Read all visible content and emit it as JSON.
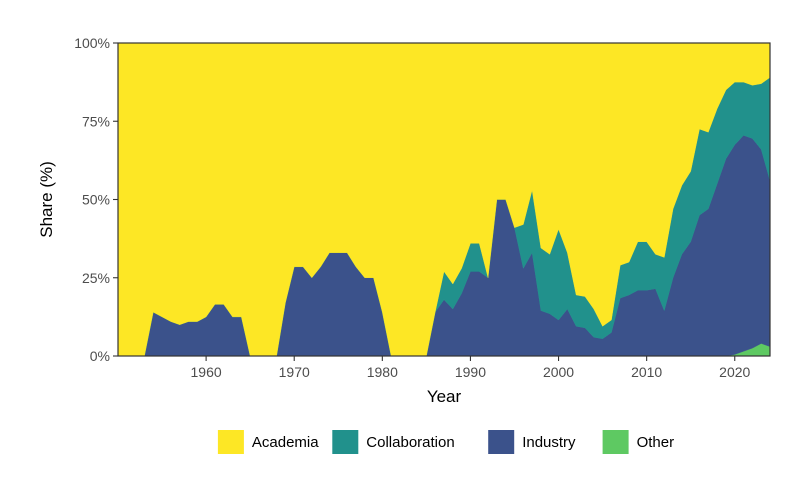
{
  "chart_data": {
    "type": "area",
    "stacked": true,
    "normalized": true,
    "xlabel": "Year",
    "ylabel": "Share (%)",
    "xlim": [
      1950,
      2024
    ],
    "ylim": [
      0,
      100
    ],
    "x_ticks": [
      1960,
      1970,
      1980,
      1990,
      2000,
      2010,
      2020
    ],
    "y_ticks": [
      {
        "value": 0,
        "label": "0%"
      },
      {
        "value": 25,
        "label": "25%"
      },
      {
        "value": 50,
        "label": "50%"
      },
      {
        "value": 75,
        "label": "75%"
      },
      {
        "value": 100,
        "label": "100%"
      }
    ],
    "grid": false,
    "legend_position": "bottom",
    "x": [
      1950,
      1951,
      1952,
      1953,
      1954,
      1955,
      1956,
      1957,
      1958,
      1959,
      1960,
      1961,
      1962,
      1963,
      1964,
      1965,
      1966,
      1967,
      1968,
      1969,
      1970,
      1971,
      1972,
      1973,
      1974,
      1975,
      1976,
      1977,
      1978,
      1979,
      1980,
      1981,
      1982,
      1983,
      1984,
      1985,
      1986,
      1987,
      1988,
      1989,
      1990,
      1991,
      1992,
      1993,
      1994,
      1995,
      1996,
      1997,
      1998,
      1999,
      2000,
      2001,
      2002,
      2003,
      2004,
      2005,
      2006,
      2007,
      2008,
      2009,
      2010,
      2011,
      2012,
      2013,
      2014,
      2015,
      2016,
      2017,
      2018,
      2019,
      2020,
      2021,
      2022,
      2023,
      2024
    ],
    "series": [
      {
        "name": "Other",
        "color": "#5ec962",
        "values": [
          0,
          0,
          0,
          0,
          0,
          0,
          0,
          0,
          0,
          0,
          0,
          0,
          0,
          0,
          0,
          0,
          0,
          0,
          0,
          0,
          0,
          0,
          0,
          0,
          0,
          0,
          0,
          0,
          0,
          0,
          0,
          0,
          0,
          0,
          0,
          0,
          0,
          0,
          0,
          0,
          0,
          0,
          0,
          0,
          0,
          0,
          0,
          0,
          0,
          0,
          0,
          0,
          0,
          0,
          0,
          0,
          0,
          0,
          0,
          0,
          0,
          0,
          0,
          0,
          0,
          0,
          0,
          0,
          0,
          0,
          0.5,
          1.5,
          2.5,
          4,
          3
        ]
      },
      {
        "name": "Industry",
        "color": "#3b528b",
        "values": [
          0,
          0,
          0,
          0,
          14,
          12.5,
          11,
          10,
          11,
          11,
          12.5,
          16.5,
          16.5,
          12.5,
          12.5,
          0,
          0,
          0,
          0,
          17,
          28.5,
          28.5,
          25,
          28.5,
          33,
          33,
          33,
          28.5,
          25,
          25,
          14,
          0,
          0,
          0,
          0,
          0,
          14,
          18,
          15,
          20,
          27,
          27,
          25,
          50,
          50,
          41,
          28,
          33,
          14.5,
          13.5,
          11.5,
          15,
          9.5,
          9,
          6,
          5.5,
          7.5,
          18.5,
          19.5,
          21,
          21,
          21.5,
          14.5,
          25,
          32.5,
          36.5,
          45,
          47,
          55,
          63,
          67,
          69,
          67,
          62,
          53
        ]
      },
      {
        "name": "Collaboration",
        "color": "#21918c",
        "values": [
          0,
          0,
          0,
          0,
          0,
          0,
          0,
          0,
          0,
          0,
          0,
          0,
          0,
          0,
          0,
          0,
          0,
          0,
          0,
          0,
          0,
          0,
          0,
          0,
          0,
          0,
          0,
          0,
          0,
          0,
          0,
          0,
          0,
          0,
          0,
          0,
          0,
          9,
          8,
          8,
          9,
          9,
          0,
          0,
          0,
          0,
          14,
          20,
          20,
          19,
          29,
          18,
          10,
          10,
          9,
          4,
          4,
          10.5,
          10.5,
          15.5,
          15.5,
          11,
          17,
          22,
          22,
          22.5,
          27.5,
          24.5,
          24,
          22,
          20,
          17,
          17,
          21,
          33
        ]
      },
      {
        "name": "Academia",
        "color": "#fde725",
        "values": [
          100,
          100,
          100,
          100,
          86,
          87.5,
          89,
          90,
          89,
          89,
          87.5,
          83.5,
          83.5,
          87.5,
          87.5,
          100,
          100,
          100,
          100,
          83,
          71.5,
          71.5,
          75,
          71.5,
          67,
          67,
          67,
          71.5,
          75,
          75,
          86,
          100,
          100,
          100,
          100,
          100,
          86,
          73,
          77,
          72,
          64,
          64,
          75,
          50,
          50,
          59,
          58,
          47,
          65.5,
          67.5,
          59.5,
          67,
          80.5,
          81,
          85,
          90.5,
          88.5,
          71,
          70,
          63.5,
          63.5,
          67.5,
          68.5,
          53,
          45.5,
          41,
          27.5,
          28.5,
          21,
          15,
          12.5,
          12.5,
          13.5,
          13,
          11
        ]
      }
    ],
    "legend": [
      "Academia",
      "Collaboration",
      "Industry",
      "Other"
    ]
  }
}
